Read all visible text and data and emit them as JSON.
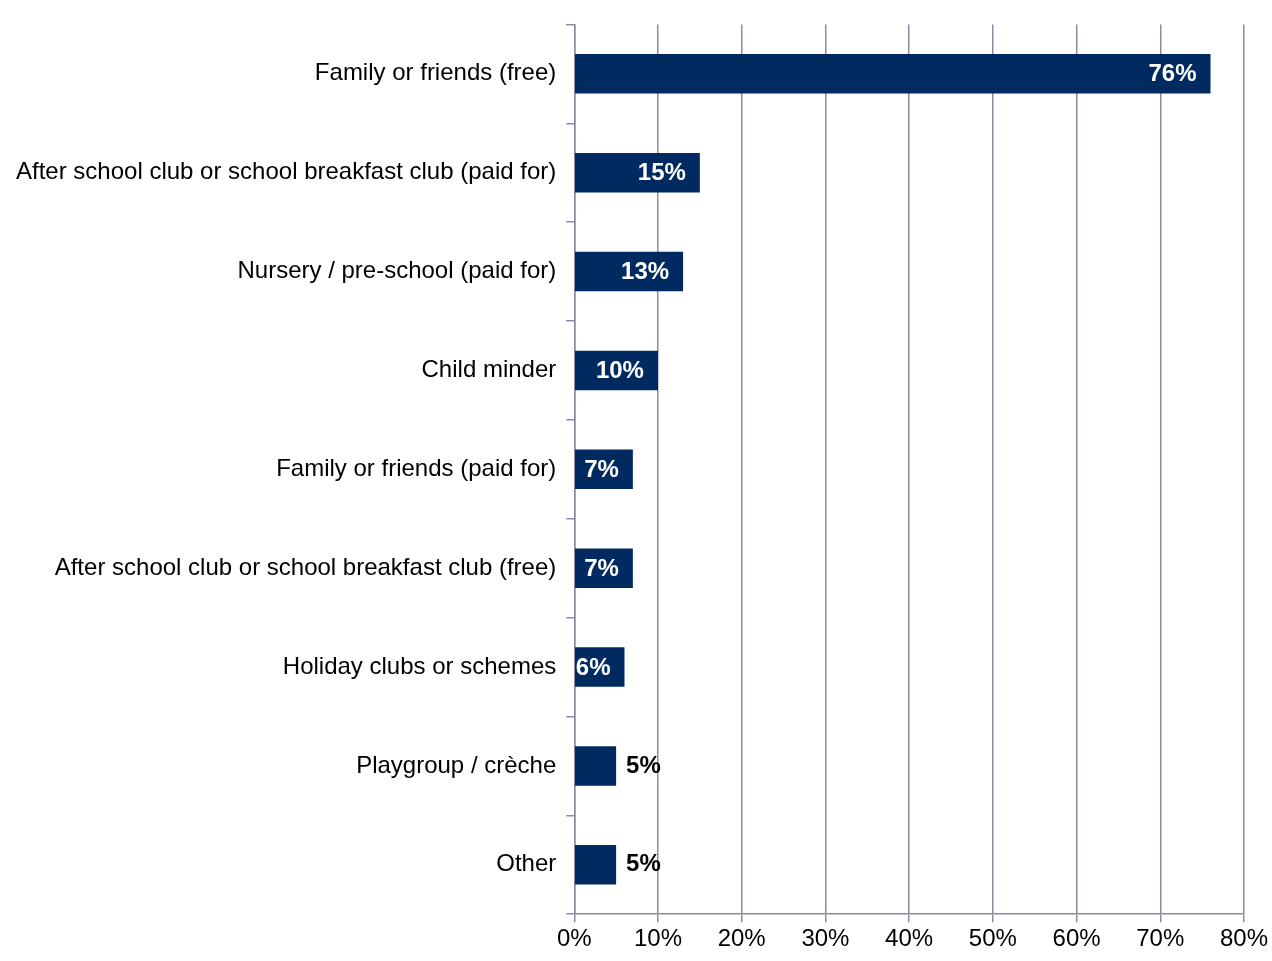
{
  "chart_data": {
    "type": "bar",
    "orientation": "horizontal",
    "categories": [
      "Family or friends (free)",
      "After school club or school breakfast club (paid for)",
      "Nursery / pre-school (paid for)",
      "Child minder",
      "Family or friends (paid for)",
      "After school club or school breakfast club (free)",
      "Holiday clubs or schemes",
      "Playgroup / crèche",
      "Other"
    ],
    "values": [
      76,
      15,
      13,
      10,
      7,
      7,
      6,
      5,
      5
    ],
    "color": "#002a60",
    "xlim": [
      0,
      80
    ],
    "xticks": [
      {
        "value": 0,
        "label": "0%"
      },
      {
        "value": 10,
        "label": "10%"
      },
      {
        "value": 20,
        "label": "20%"
      },
      {
        "value": 30,
        "label": "30%"
      },
      {
        "value": 40,
        "label": "40%"
      },
      {
        "value": 50,
        "label": "50%"
      },
      {
        "value": 60,
        "label": "60%"
      },
      {
        "value": 70,
        "label": "70%"
      },
      {
        "value": 80,
        "label": "80%"
      }
    ],
    "value_labels": [
      "76%",
      "15%",
      "13%",
      "10%",
      "7%",
      "7%",
      "6%",
      "5%",
      "5%"
    ],
    "grid": "x",
    "legend": false
  }
}
